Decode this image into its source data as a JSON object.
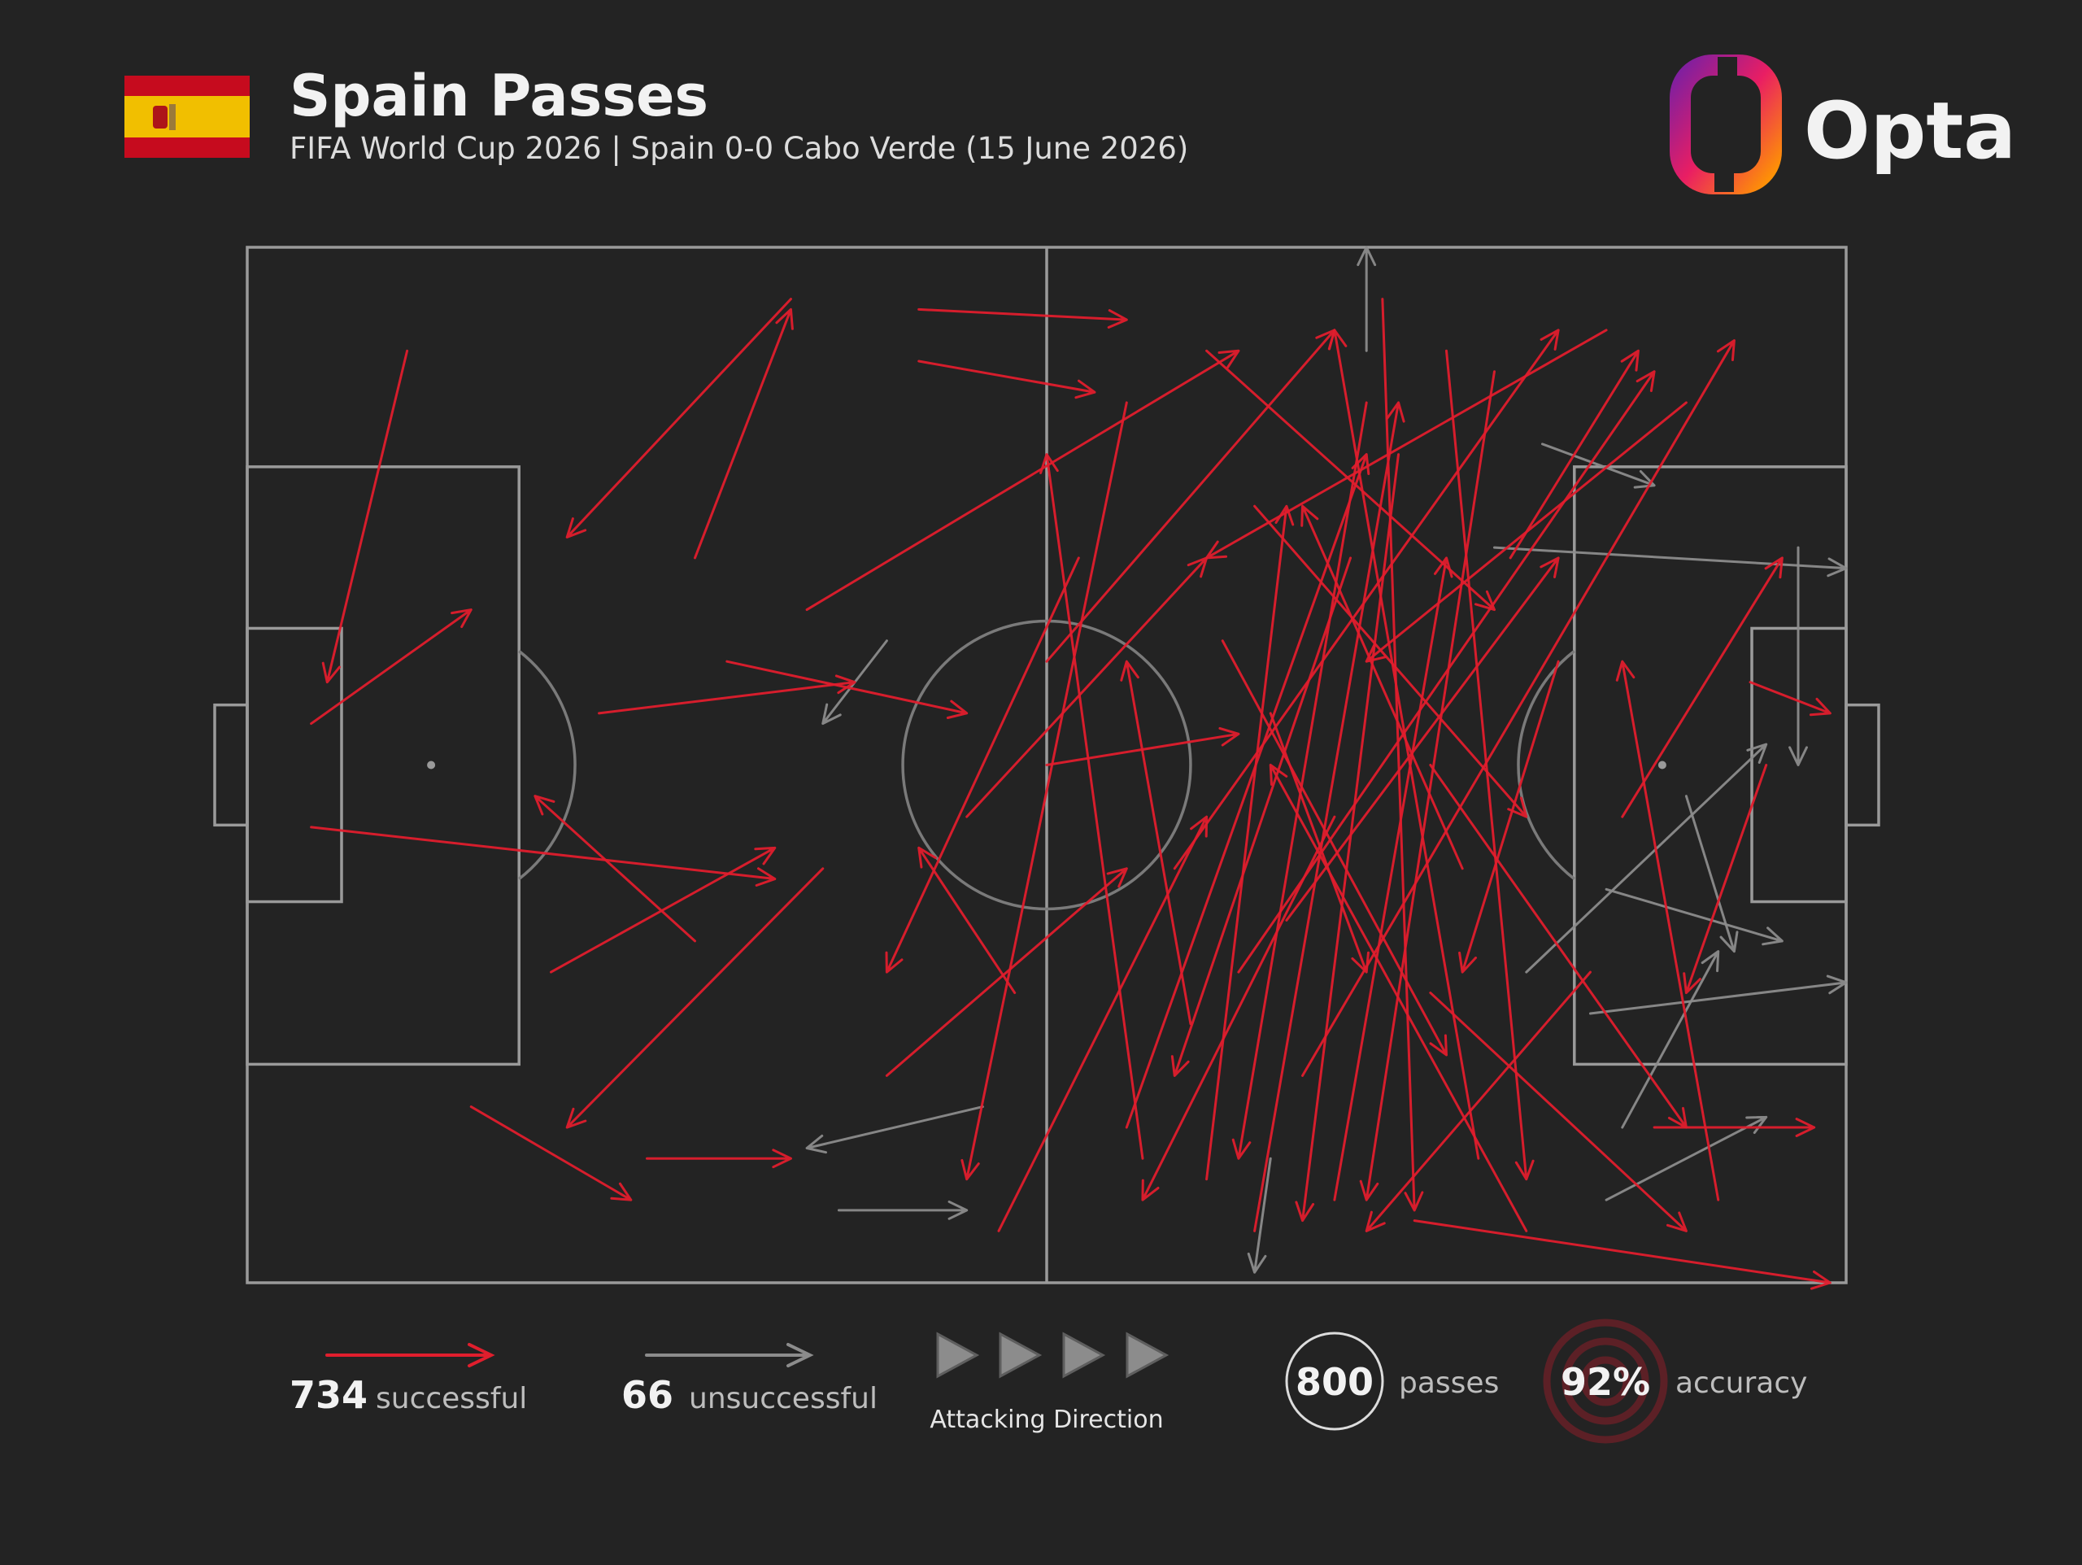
{
  "chart_data": {
    "type": "pass-map",
    "title": "Spain Passes",
    "subtitle": "FIFA World Cup 2026 | Spain 0-0 Cabo Verde (15 June 2026)",
    "brand": "Opta",
    "xlim": [
      0,
      100
    ],
    "ylim": [
      0,
      100
    ],
    "series": [
      {
        "name": "successful",
        "count": 734,
        "color": "#e01e2d",
        "x_start": [
          10,
          4,
          34,
          4,
          14,
          42,
          42,
          28,
          19,
          25,
          28,
          35,
          50,
          55,
          60,
          63,
          68,
          70,
          72,
          75,
          78,
          58,
          62,
          66,
          80,
          74,
          85,
          90,
          88,
          73,
          52,
          45,
          40,
          47,
          56,
          59,
          64,
          69,
          76,
          82,
          77,
          71,
          65,
          60,
          84,
          92,
          95,
          94,
          50,
          30,
          22,
          36,
          48,
          55,
          79,
          63,
          68,
          86,
          61,
          74
        ],
        "y_start": [
          10,
          46,
          5,
          56,
          83,
          6,
          11,
          30,
          70,
          88,
          67,
          35,
          40,
          85,
          90,
          95,
          92,
          15,
          20,
          10,
          12,
          60,
          70,
          80,
          95,
          50,
          8,
          15,
          85,
          94,
          30,
          55,
          80,
          95,
          88,
          75,
          45,
          30,
          60,
          40,
          88,
          5,
          65,
          10,
          70,
          92,
          50,
          42,
          50,
          40,
          45,
          60,
          72,
          15,
          30,
          25,
          55,
          55,
          38,
          72
        ],
        "x_end": [
          5,
          14,
          20,
          33,
          24,
          55,
          53,
          34,
          33,
          34,
          18,
          62,
          68,
          70,
          65,
          72,
          75,
          62,
          66,
          80,
          70,
          82,
          88,
          93,
          64,
          90,
          60,
          70,
          98,
          99,
          40,
          60,
          55,
          60,
          50,
          55,
          70,
          58,
          66,
          76,
          68,
          73,
          82,
          78,
          70,
          86,
          90,
          99,
          62,
          45,
          38,
          20,
          42,
          45,
          87,
          80,
          56,
          96,
          75,
          90
        ],
        "y_end": [
          42,
          35,
          28,
          61,
          92,
          7,
          14,
          6,
          58,
          88,
          53,
          10,
          8,
          20,
          25,
          15,
          30,
          88,
          94,
          90,
          92,
          8,
          12,
          9,
          50,
          85,
          30,
          40,
          85,
          100,
          70,
          30,
          60,
          55,
          20,
          40,
          70,
          80,
          25,
          70,
          8,
          93,
          30,
          35,
          95,
          40,
          72,
          45,
          47,
          45,
          42,
          85,
          58,
          90,
          10,
          55,
          92,
          30,
          78,
          95
        ]
      },
      {
        "name": "unsuccessful",
        "count": 66,
        "color": "#8c8c8c",
        "x_start": [
          70,
          46,
          37,
          81,
          78,
          97,
          85,
          80,
          90,
          64,
          85,
          86,
          40,
          84
        ],
        "y_start": [
          10,
          83,
          93,
          19,
          29,
          29,
          62,
          70,
          53,
          88,
          92,
          85,
          38,
          74
        ],
        "x_end": [
          70,
          35,
          45,
          88,
          100,
          97,
          96,
          95,
          93,
          63,
          95,
          92,
          36,
          100
        ],
        "y_end": [
          0,
          87,
          93,
          23,
          31,
          50,
          67,
          48,
          68,
          99,
          84,
          68,
          46,
          71
        ]
      }
    ],
    "direction_label": "Attacking Direction",
    "total": {
      "value": 800,
      "label": "passes"
    },
    "accuracy": {
      "value": {
        "value": 92,
        "label": "92%"
      },
      "label": "accuracy"
    }
  }
}
